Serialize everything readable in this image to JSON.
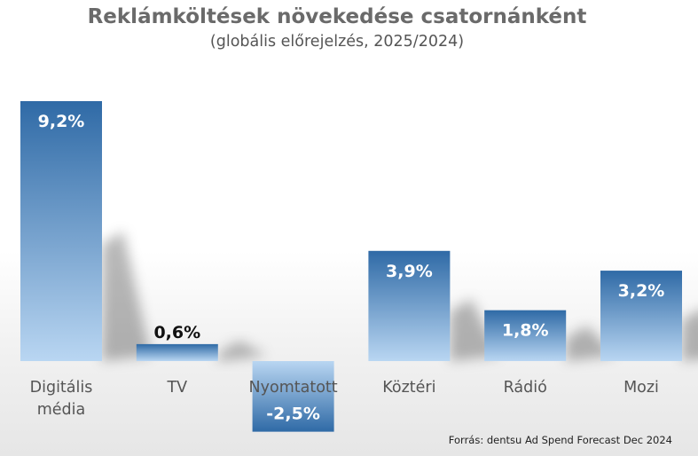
{
  "chart_data": {
    "type": "bar",
    "title": "Reklámköltések növekedése csatornánként",
    "subtitle": "(globális előrejelzés, 2025/2024)",
    "categories": [
      [
        "Digitális",
        "média"
      ],
      [
        "TV"
      ],
      [
        "Nyomtatott"
      ],
      [
        "Köztéri"
      ],
      [
        "Rádió"
      ],
      [
        "Mozi"
      ]
    ],
    "values": [
      9.2,
      0.6,
      -2.5,
      3.9,
      1.8,
      3.2
    ],
    "value_labels": [
      "9,2%",
      "0,6%",
      "-2,5%",
      "3,9%",
      "1,8%",
      "3,2%"
    ],
    "value_label_colors": [
      "#ffffff",
      "#111111",
      "#ffffff",
      "#ffffff",
      "#ffffff",
      "#ffffff"
    ],
    "ylim": [
      -2.5,
      9.2
    ],
    "grid": false,
    "legend": "none",
    "source": "Forrás: dentsu Ad Spend Forecast Dec 2024",
    "colors": {
      "bar_dark": "#2f6aa6",
      "bar_light": "#b9d6f2",
      "title": "#6a6a6a"
    }
  }
}
